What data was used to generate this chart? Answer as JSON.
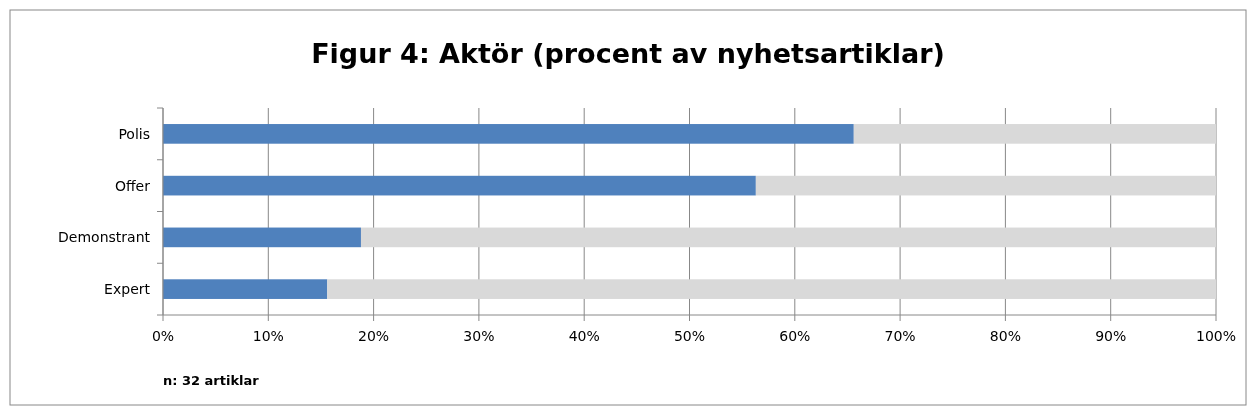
{
  "chart_data": {
    "type": "bar",
    "orientation": "horizontal",
    "stacked": true,
    "title": "Figur 4: Aktör (procent av nyhetsartiklar)",
    "categories": [
      "Polis",
      "Offer",
      "Demonstrant",
      "Expert"
    ],
    "series": [
      {
        "color": "#4f81bd",
        "values": [
          65.6,
          56.3,
          18.8,
          15.6
        ]
      },
      {
        "color": "#d9d9d9",
        "values": [
          34.4,
          43.7,
          81.2,
          84.4
        ]
      }
    ],
    "xlim": [
      0,
      100
    ],
    "xticks": [
      {
        "value": 0,
        "label": "0%"
      },
      {
        "value": 10,
        "label": "10%"
      },
      {
        "value": 20,
        "label": "20%"
      },
      {
        "value": 30,
        "label": "30%"
      },
      {
        "value": 40,
        "label": "40%"
      },
      {
        "value": 50,
        "label": "50%"
      },
      {
        "value": 60,
        "label": "60%"
      },
      {
        "value": 70,
        "label": "70%"
      },
      {
        "value": 80,
        "label": "80%"
      },
      {
        "value": 90,
        "label": "90%"
      },
      {
        "value": 100,
        "label": "100%"
      }
    ],
    "grid": "x",
    "annotations": [
      "n: 32 artiklar"
    ]
  }
}
